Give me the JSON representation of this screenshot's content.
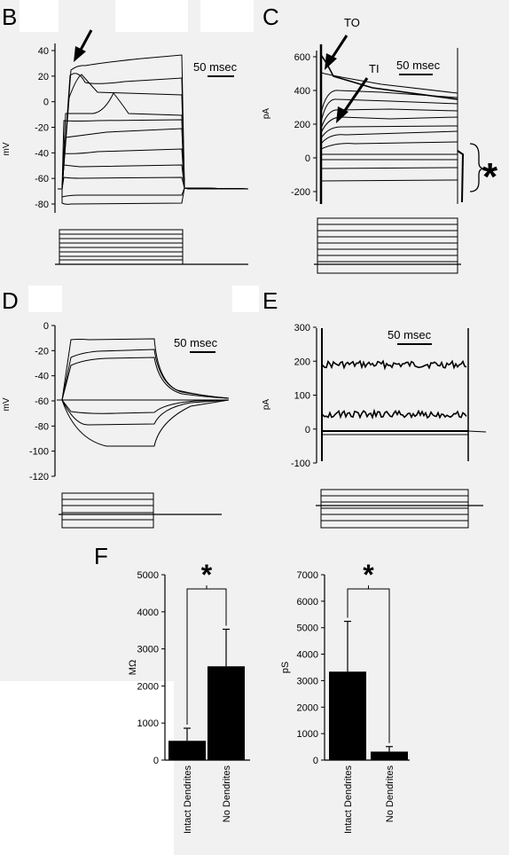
{
  "panels": {
    "B": {
      "letter": "B",
      "ylabel": "mV",
      "scalebar": "50 msec",
      "ticks": [
        "40",
        "20",
        "0",
        "-20",
        "-40",
        "-60",
        "-80"
      ]
    },
    "C": {
      "letter": "C",
      "ylabel": "pA",
      "scalebar": "50 msec",
      "ticks": [
        "600",
        "400",
        "200",
        "0",
        "-200"
      ],
      "annotations": {
        "to": "TO",
        "ti": "TI",
        "star": "*"
      }
    },
    "D": {
      "letter": "D",
      "ylabel": "mV",
      "scalebar": "50 msec",
      "ticks": [
        "0",
        "-20",
        "-40",
        "-60",
        "-80",
        "-100",
        "-120"
      ]
    },
    "E": {
      "letter": "E",
      "ylabel": "pA",
      "scalebar": "50 msec",
      "ticks": [
        "300",
        "200",
        "100",
        "0",
        "-100"
      ]
    },
    "F": {
      "letter": "F"
    }
  },
  "chart_data": [
    {
      "type": "bar",
      "panel": "F-left",
      "categories": [
        "Intact Dendrites",
        "No Dendrites"
      ],
      "values": [
        520,
        2530
      ],
      "errors": [
        340,
        1000
      ],
      "ylabel": "MΩ",
      "ylim": [
        0,
        5000
      ],
      "ticks": [
        "0",
        "1000",
        "2000",
        "3000",
        "4000",
        "5000"
      ],
      "significance": "*",
      "color": "#000000"
    },
    {
      "type": "bar",
      "panel": "F-right",
      "categories": [
        "Intact Dendrites",
        "No Dendrites"
      ],
      "values": [
        3340,
        320
      ],
      "errors": [
        1900,
        190
      ],
      "ylabel": "pS",
      "ylim": [
        0,
        7000
      ],
      "ticks": [
        "0",
        "1000",
        "2000",
        "3000",
        "4000",
        "5000",
        "6000",
        "7000"
      ],
      "significance": "*",
      "color": "#000000"
    }
  ]
}
